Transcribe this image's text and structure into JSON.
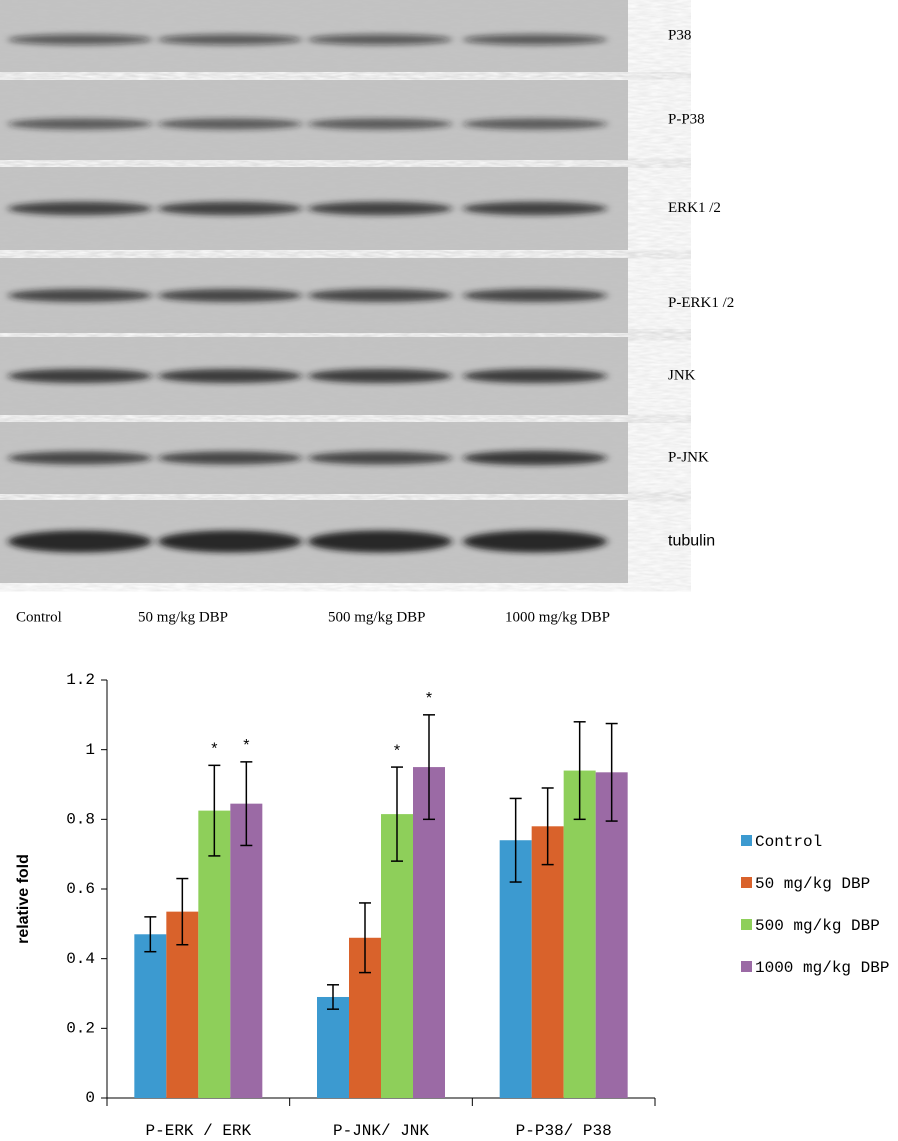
{
  "blot": {
    "rows": [
      "P38",
      "P-P38",
      "ERK1 /2",
      "P-ERK1 /2",
      "JNK",
      "P-JNK",
      "tubulin"
    ],
    "lanes": [
      "Control",
      "50 mg/kg DBP",
      "500 mg/kg DBP",
      "1000 mg/kg DBP"
    ]
  },
  "chart_data": {
    "type": "bar",
    "y_label": "relative fold",
    "categories": [
      "P-ERK / ERK",
      "P-JNK/ JNK",
      "P-P38/ P38"
    ],
    "series": [
      {
        "name": "Control",
        "color": "#3c9ad0",
        "values": [
          0.47,
          0.29,
          0.74
        ],
        "errors": [
          0.05,
          0.035,
          0.12
        ]
      },
      {
        "name": "50 mg/kg DBP",
        "color": "#d9622b",
        "values": [
          0.535,
          0.46,
          0.78
        ],
        "errors": [
          0.095,
          0.1,
          0.11
        ]
      },
      {
        "name": "500 mg/kg DBP",
        "color": "#8ecf5a",
        "values": [
          0.825,
          0.815,
          0.94
        ],
        "errors": [
          0.13,
          0.135,
          0.14
        ]
      },
      {
        "name": "1000 mg/kg DBP",
        "color": "#9b6aa5",
        "values": [
          0.845,
          0.95,
          0.935
        ],
        "errors": [
          0.12,
          0.15,
          0.14
        ]
      }
    ],
    "annotations": [
      {
        "text": "*",
        "series": 2,
        "category": 0
      },
      {
        "text": "*",
        "series": 3,
        "category": 0
      },
      {
        "text": "*",
        "series": 2,
        "category": 1
      },
      {
        "text": "*",
        "series": 3,
        "category": 1
      }
    ],
    "ylim": [
      0,
      1.2
    ],
    "yticks": [
      0,
      0.2,
      0.4,
      0.6,
      0.8,
      1,
      1.2
    ],
    "legend": "right"
  }
}
